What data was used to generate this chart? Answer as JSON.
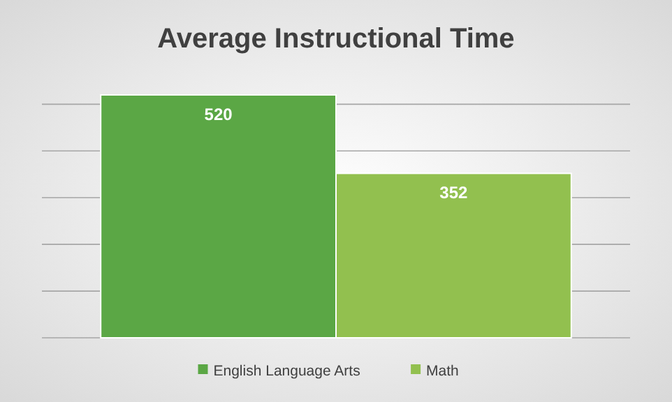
{
  "chart_data": {
    "type": "bar",
    "title": "Average Instructional Time",
    "categories": [
      null
    ],
    "series": [
      {
        "name": "English Language Arts",
        "color": "#5ba745",
        "values": [
          520
        ]
      },
      {
        "name": "Math",
        "color": "#92c04f",
        "values": [
          352
        ]
      }
    ],
    "ylim": [
      0,
      520
    ],
    "yticks": [
      {
        "value": 0,
        "label": null
      },
      {
        "value": 100,
        "label": null
      },
      {
        "value": 200,
        "label": null
      },
      {
        "value": 300,
        "label": null
      },
      {
        "value": 400,
        "label": null
      },
      {
        "value": 500,
        "label": null
      }
    ],
    "grid": "y",
    "data_labels": true,
    "legend": "bottom"
  }
}
